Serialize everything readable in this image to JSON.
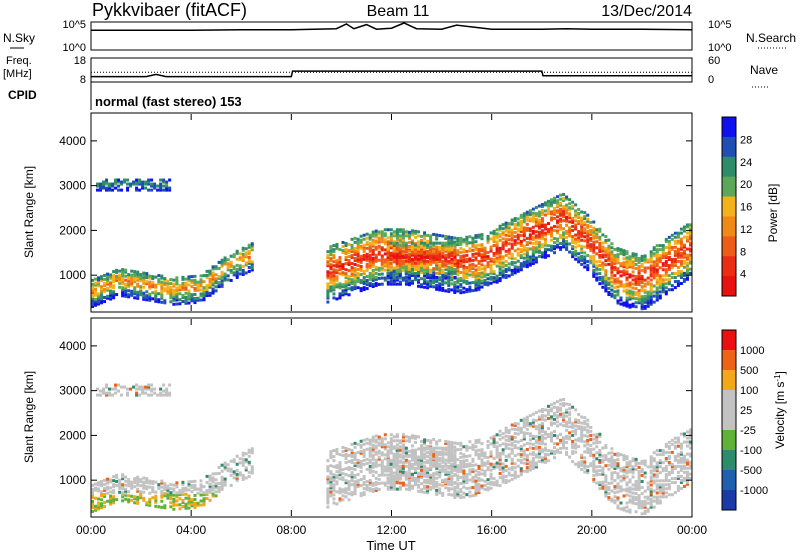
{
  "header": {
    "station": "Pykkvibaer (fitACF)",
    "beam": "Beam 11",
    "date": "13/Dec/2014",
    "mode": "normal (fast stereo) 153"
  },
  "panels_top": {
    "nsky_label": "N.Sky",
    "nsky_tick_hi": "10^5",
    "nsky_tick_lo": "10^0",
    "nsearch_label": "N.Search",
    "nsearch_tick_hi": "10^5",
    "nsearch_tick_lo": "10^0",
    "freq_label": "Freq.",
    "freq_unit": "[MHz]",
    "freq_tick_hi": "18",
    "freq_tick_lo": "8",
    "nave_label": "Nave",
    "nave_tick_hi": "60",
    "nave_tick_lo": "0",
    "cpid_label": "CPID"
  },
  "colors": {
    "power_scale": [
      "#1010ee",
      "#1f4fb4",
      "#2f8c6a",
      "#5ca858",
      "#f3b21a",
      "#f08a17",
      "#ee5d17",
      "#ea2d14",
      "#e81010"
    ],
    "velocity_scale": [
      "#e81010",
      "#ee6315",
      "#f3a81b",
      "#c2c2c2",
      "#c2c2c2",
      "#5fb238",
      "#2f8c6a",
      "#1f5fae",
      "#1b3aa8"
    ],
    "ground_scatter": "#c2c2c2",
    "trace": "#000000"
  },
  "chart_data": [
    {
      "type": "line",
      "name": "nsky_nsearch",
      "xlim": [
        0,
        24
      ],
      "ylim_log10": [
        0,
        5
      ],
      "description_values": {
        "x": [
          0,
          2,
          4,
          6,
          8,
          9.8,
          10.2,
          10.5,
          11,
          11.4,
          12,
          12.5,
          13,
          14,
          14.6,
          16,
          18,
          19,
          20,
          22,
          24
        ],
        "nsky_log10": [
          3.6,
          3.6,
          3.6,
          3.7,
          3.7,
          3.9,
          4.8,
          3.9,
          4.7,
          3.8,
          4.0,
          5.0,
          3.9,
          3.8,
          4.6,
          3.8,
          3.8,
          3.9,
          3.8,
          3.8,
          3.7
        ]
      }
    },
    {
      "type": "line",
      "name": "freq_nave",
      "xlim": [
        0,
        24
      ],
      "freq_ylim": [
        8,
        18
      ],
      "nave_ylim": [
        0,
        60
      ],
      "x": [
        0,
        2.2,
        2.6,
        3.0,
        8.0,
        8.05,
        18.0,
        18.05,
        24
      ],
      "freq": [
        10.0,
        10.0,
        11.0,
        10.0,
        10.0,
        12.5,
        12.5,
        10.4,
        10.4
      ],
      "nave_x": [
        0,
        24
      ],
      "nave": [
        24,
        24
      ]
    },
    {
      "type": "heatmap",
      "name": "power",
      "xlabel": "",
      "ylabel": "Slant Range [km]",
      "xlim": [
        0,
        24
      ],
      "ylim": [
        200,
        4600
      ],
      "yticks": [
        "1000",
        "2000",
        "3000",
        "4000"
      ],
      "cbar_label": "Power [dB]",
      "cbar_ticks": [
        "4",
        "8",
        "12",
        "16",
        "20",
        "24",
        "28"
      ],
      "features": [
        {
          "x0": 0.0,
          "x1": 6.5,
          "center": [
            650,
            900,
            800,
            700,
            750,
            1200,
            1500
          ],
          "width": 350,
          "peak": 20
        },
        {
          "x0": 0.2,
          "x1": 3.2,
          "center": [
            3050
          ],
          "width": 150,
          "peak": 8
        },
        {
          "x0": 9.4,
          "x1": 24.0,
          "center": [
            1100,
            1300,
            1500,
            1500,
            1400,
            1300,
            1400,
            1700,
            2000,
            2300,
            1800,
            1100,
            900,
            1300,
            1700
          ],
          "width": 700,
          "peak": 28
        },
        {
          "x0": 11.8,
          "x1": 14.6,
          "center": [
            1400
          ],
          "width": 450,
          "peak": 30
        }
      ]
    },
    {
      "type": "heatmap",
      "name": "velocity",
      "xlabel": "Time UT",
      "ylabel": "Slant Range [km]",
      "xlim": [
        0,
        24
      ],
      "ylim": [
        200,
        4600
      ],
      "xticks": [
        "00:00",
        "04:00",
        "08:00",
        "12:00",
        "16:00",
        "20:00",
        "00:00"
      ],
      "yticks": [
        "1000",
        "2000",
        "3000",
        "4000"
      ],
      "cbar_label": "Velocity [m s",
      "cbar_label_sup": "-1",
      "cbar_ticks": [
        "1000",
        "500",
        "100",
        "25",
        "-25",
        "-100",
        "-500",
        "-1000"
      ]
    }
  ]
}
